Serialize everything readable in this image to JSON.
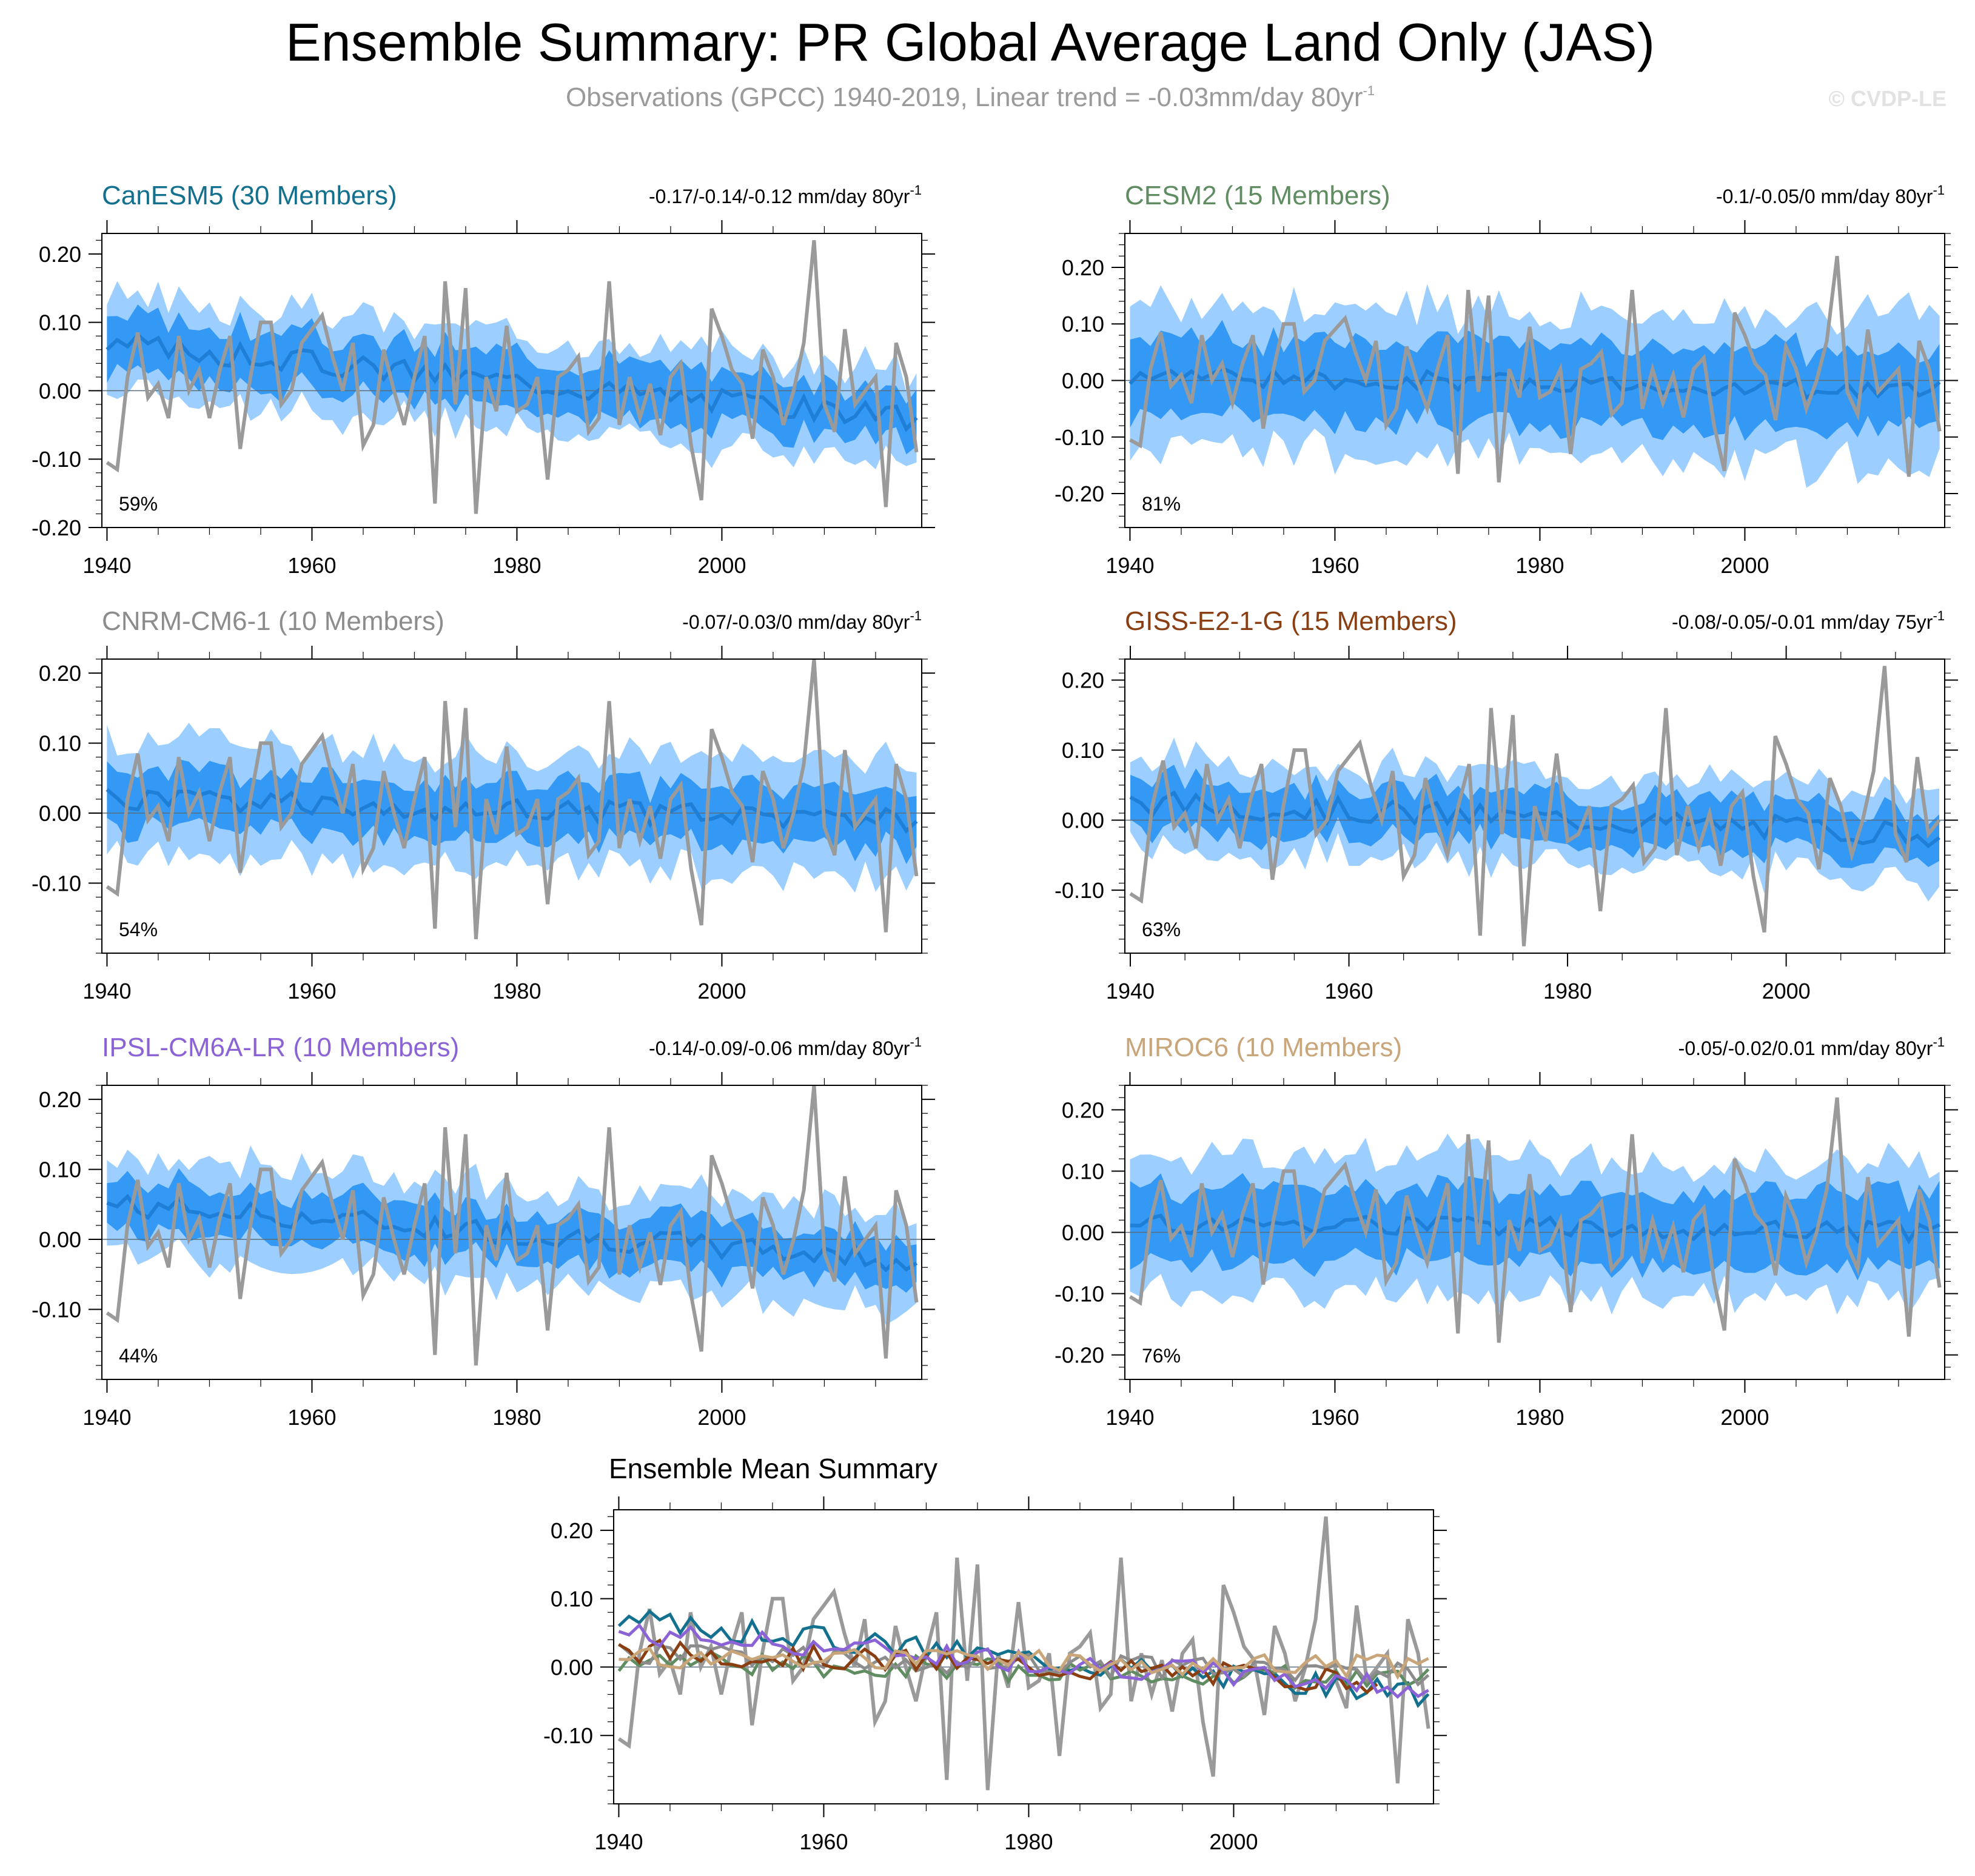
{
  "title": "Ensemble Summary: PR Global Average Land Only (JAS)",
  "subtitle": {
    "text": "Observations (GPCC) 1940-2019, Linear trend = -0.03mm/day 80yr",
    "sup": "-1"
  },
  "watermark": "© CVDP-LE",
  "colors": {
    "band_outer": "#9ccfff",
    "band_inner": "#3399f5",
    "ens_mean": "#1f7fd6",
    "obs": "#9a9a9a"
  },
  "chart_data": [
    {
      "type": "area",
      "model": "CanESM5 (30 Members)",
      "color": "#13708e",
      "trend": "-0.17/-0.14/-0.12 mm/day 80yr",
      "trend_sup": "-1",
      "percent": "59%",
      "ylim": [
        -0.2,
        0.23
      ],
      "yticks": [
        "0.20",
        "0.10",
        "0.00",
        "-0.10",
        "-0.20"
      ],
      "ytick_values": [
        0.2,
        0.1,
        0,
        -0.1,
        -0.2
      ],
      "xlim": [
        1939.5,
        2019.5
      ],
      "xticks": [
        "1940",
        "1960",
        "1980",
        "2000"
      ],
      "xtick_values": [
        1940,
        1960,
        1980,
        2000
      ],
      "mean_start": 0.07,
      "mean_end": -0.04,
      "spread_inner": 0.04,
      "spread_outer": 0.07,
      "end_year": 2019
    },
    {
      "type": "area",
      "model": "CESM2 (15 Members)",
      "color": "#5f8c60",
      "trend": "-0.1/-0.05/0 mm/day 80yr",
      "trend_sup": "-1",
      "percent": "81%",
      "ylim": [
        -0.26,
        0.26
      ],
      "yticks": [
        "0.20",
        "0.10",
        "0.00",
        "-0.10",
        "-0.20"
      ],
      "ytick_values": [
        0.2,
        0.1,
        0,
        -0.1,
        -0.2
      ],
      "xlim": [
        1939.5,
        2019.5
      ],
      "xticks": [
        "1940",
        "1960",
        "1980",
        "2000"
      ],
      "xtick_values": [
        1940,
        1960,
        1980,
        2000
      ],
      "mean_start": 0.01,
      "mean_end": -0.02,
      "spread_inner": 0.07,
      "spread_outer": 0.13,
      "end_year": 2019
    },
    {
      "type": "area",
      "model": "CNRM-CM6-1 (10 Members)",
      "color": "#8c8c8c",
      "trend": "-0.07/-0.03/0 mm/day 80yr",
      "trend_sup": "-1",
      "percent": "54%",
      "ylim": [
        -0.2,
        0.22
      ],
      "yticks": [
        "0.20",
        "0.10",
        "0.00",
        "-0.10"
      ],
      "ytick_values": [
        0.2,
        0.1,
        0,
        -0.1
      ],
      "xlim": [
        1939.5,
        2019.5
      ],
      "xticks": [
        "1940",
        "1960",
        "1980",
        "2000"
      ],
      "xtick_values": [
        1940,
        1960,
        1980,
        2000
      ],
      "mean_start": 0.02,
      "mean_end": -0.01,
      "spread_inner": 0.04,
      "spread_outer": 0.08,
      "end_year": 2019
    },
    {
      "type": "area",
      "model": "GISS-E2-1-G (15 Members)",
      "color": "#8a3f12",
      "trend": "-0.08/-0.05/-0.01 mm/day 75yr",
      "trend_sup": "-1",
      "percent": "63%",
      "ylim": [
        -0.19,
        0.23
      ],
      "yticks": [
        "0.20",
        "0.10",
        "0.00",
        "-0.10"
      ],
      "ytick_values": [
        0.2,
        0.1,
        0,
        -0.1
      ],
      "xlim": [
        1939.5,
        2014.5
      ],
      "xticks": [
        "1940",
        "1960",
        "1980",
        "2000"
      ],
      "xtick_values": [
        1940,
        1960,
        1980,
        2000
      ],
      "mean_start": 0.025,
      "mean_end": -0.02,
      "spread_inner": 0.035,
      "spread_outer": 0.065,
      "end_year": 2014
    },
    {
      "type": "area",
      "model": "IPSL-CM6A-LR (10 Members)",
      "color": "#8b63d6",
      "trend": "-0.14/-0.09/-0.06 mm/day 80yr",
      "trend_sup": "-1",
      "percent": "44%",
      "ylim": [
        -0.2,
        0.22
      ],
      "yticks": [
        "0.20",
        "0.10",
        "0.00",
        "-0.10"
      ],
      "ytick_values": [
        0.2,
        0.1,
        0,
        -0.1
      ],
      "xlim": [
        1939.5,
        2019.5
      ],
      "xticks": [
        "1940",
        "1960",
        "1980",
        "2000"
      ],
      "xtick_values": [
        1940,
        1960,
        1980,
        2000
      ],
      "mean_start": 0.05,
      "mean_end": -0.03,
      "spread_inner": 0.035,
      "spread_outer": 0.07,
      "end_year": 2019
    },
    {
      "type": "area",
      "model": "MIROC6 (10 Members)",
      "color": "#c9a57a",
      "trend": "-0.05/-0.02/0.01 mm/day 80yr",
      "trend_sup": "-1",
      "percent": "76%",
      "ylim": [
        -0.24,
        0.24
      ],
      "yticks": [
        "0.20",
        "0.10",
        "0.00",
        "-0.10",
        "-0.20"
      ],
      "ytick_values": [
        0.2,
        0.1,
        0,
        -0.1,
        -0.2
      ],
      "xlim": [
        1939.5,
        2019.5
      ],
      "xticks": [
        "1940",
        "1960",
        "1980",
        "2000"
      ],
      "xtick_values": [
        1940,
        1960,
        1980,
        2000
      ],
      "mean_start": 0.015,
      "mean_end": 0.0,
      "spread_inner": 0.06,
      "spread_outer": 0.11,
      "end_year": 2019
    },
    {
      "type": "line",
      "title": "Ensemble Mean Summary",
      "ylim": [
        -0.2,
        0.23
      ],
      "yticks": [
        "0.20",
        "0.10",
        "0.00",
        "-0.10"
      ],
      "ytick_values": [
        0.2,
        0.1,
        0,
        -0.1
      ],
      "xlim": [
        1939.5,
        2019.5
      ],
      "xticks": [
        "1940",
        "1960",
        "1980",
        "2000"
      ],
      "xtick_values": [
        1940,
        1960,
        1980,
        2000
      ],
      "series_note": "ensemble means of the six models plus GPCC observations"
    }
  ],
  "observations": {
    "name": "GPCC",
    "start_year": 1940,
    "values": [
      -0.105,
      -0.115,
      0.02,
      0.085,
      -0.01,
      0.01,
      -0.04,
      0.08,
      0.0,
      0.03,
      -0.04,
      0.03,
      0.08,
      -0.085,
      0.02,
      0.1,
      0.1,
      -0.02,
      0.0,
      0.07,
      0.09,
      0.11,
      0.05,
      0.0,
      0.07,
      -0.08,
      -0.05,
      0.06,
      0.0,
      -0.05,
      0.02,
      0.08,
      -0.165,
      0.16,
      -0.02,
      0.15,
      -0.18,
      0.02,
      -0.03,
      0.095,
      -0.03,
      -0.02,
      0.02,
      -0.13,
      0.02,
      0.03,
      0.05,
      -0.06,
      -0.04,
      0.16,
      -0.05,
      0.02,
      -0.04,
      0.01,
      -0.065,
      0.02,
      0.04,
      -0.08,
      -0.16,
      0.12,
      0.08,
      0.03,
      0.01,
      -0.07,
      0.06,
      0.02,
      -0.05,
      0.0,
      0.07,
      0.22,
      -0.02,
      -0.06,
      0.09,
      -0.02,
      0.0,
      0.02,
      -0.17,
      0.07,
      0.02,
      -0.09
    ]
  }
}
